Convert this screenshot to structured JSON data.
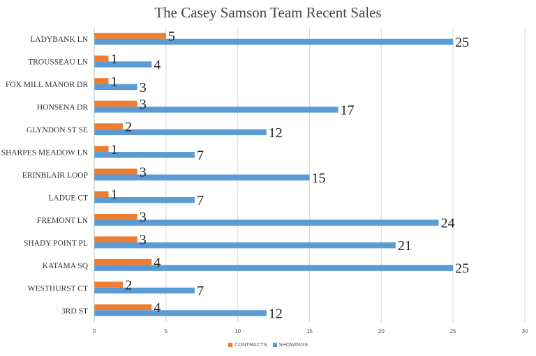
{
  "chart_data": {
    "type": "bar",
    "orientation": "horizontal",
    "title": "The Casey Samson Team Recent Sales",
    "categories": [
      "LADYBANK LN",
      "TROUSSEAU LN",
      "FOX MILL MANOR DR",
      "HONSENA DR",
      "GLYNDON ST SE",
      "SHARPES MEADOW LN",
      "ERINBLAIR LOOP",
      "LADUE CT",
      "FREMONT LN",
      "SHADY POINT PL",
      "KATAMA SQ",
      "WESTHURST CT",
      "3RD ST"
    ],
    "series": [
      {
        "name": "CONTRACTS",
        "color": "#ed7d31",
        "values": [
          5,
          1,
          1,
          3,
          2,
          1,
          3,
          1,
          3,
          3,
          4,
          2,
          4
        ]
      },
      {
        "name": "SHOWINGS",
        "color": "#5b9bd5",
        "values": [
          25,
          4,
          3,
          17,
          12,
          7,
          15,
          7,
          24,
          21,
          25,
          7,
          12
        ]
      }
    ],
    "xlim": [
      0,
      30
    ],
    "xticks": [
      0,
      5,
      10,
      15,
      20,
      25,
      30
    ],
    "gridlines": true,
    "legend_position": "bottom",
    "data_labels": true
  }
}
